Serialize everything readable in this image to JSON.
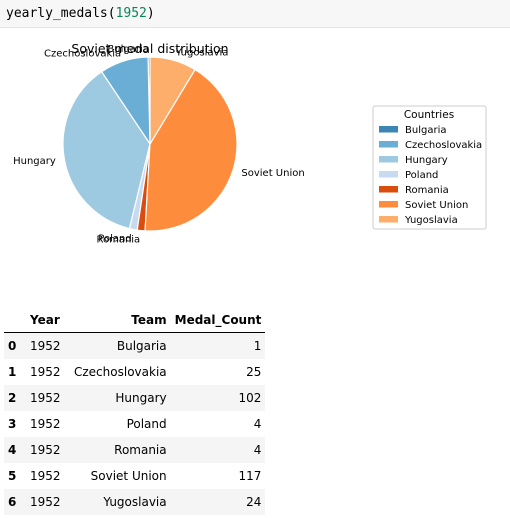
{
  "code": {
    "fn": "yearly_medals",
    "arg": "1952"
  },
  "chart_data": {
    "type": "pie",
    "title": "Soviet medal distribution",
    "legend_title": "Countries",
    "legend_position": "right",
    "start_angle": 90,
    "direction": "counterclockwise",
    "slices": [
      {
        "label": "Bulgaria",
        "value": 1,
        "color": "#3d85b5"
      },
      {
        "label": "Czechoslovakia",
        "value": 25,
        "color": "#6aaed6"
      },
      {
        "label": "Hungary",
        "value": 102,
        "color": "#9ecae1"
      },
      {
        "label": "Poland",
        "value": 4,
        "color": "#c6dbef"
      },
      {
        "label": "Romania",
        "value": 4,
        "color": "#d94d0e"
      },
      {
        "label": "Soviet Union",
        "value": 117,
        "color": "#fd8d3c"
      },
      {
        "label": "Yugoslavia",
        "value": 24,
        "color": "#fdae6b"
      }
    ]
  },
  "table": {
    "columns": [
      "Year",
      "Team",
      "Medal_Count"
    ],
    "rows": [
      {
        "index": "0",
        "year": "1952",
        "team": "Bulgaria",
        "count": "1"
      },
      {
        "index": "1",
        "year": "1952",
        "team": "Czechoslovakia",
        "count": "25"
      },
      {
        "index": "2",
        "year": "1952",
        "team": "Hungary",
        "count": "102"
      },
      {
        "index": "3",
        "year": "1952",
        "team": "Poland",
        "count": "4"
      },
      {
        "index": "4",
        "year": "1952",
        "team": "Romania",
        "count": "4"
      },
      {
        "index": "5",
        "year": "1952",
        "team": "Soviet Union",
        "count": "117"
      },
      {
        "index": "6",
        "year": "1952",
        "team": "Yugoslavia",
        "count": "24"
      }
    ]
  }
}
